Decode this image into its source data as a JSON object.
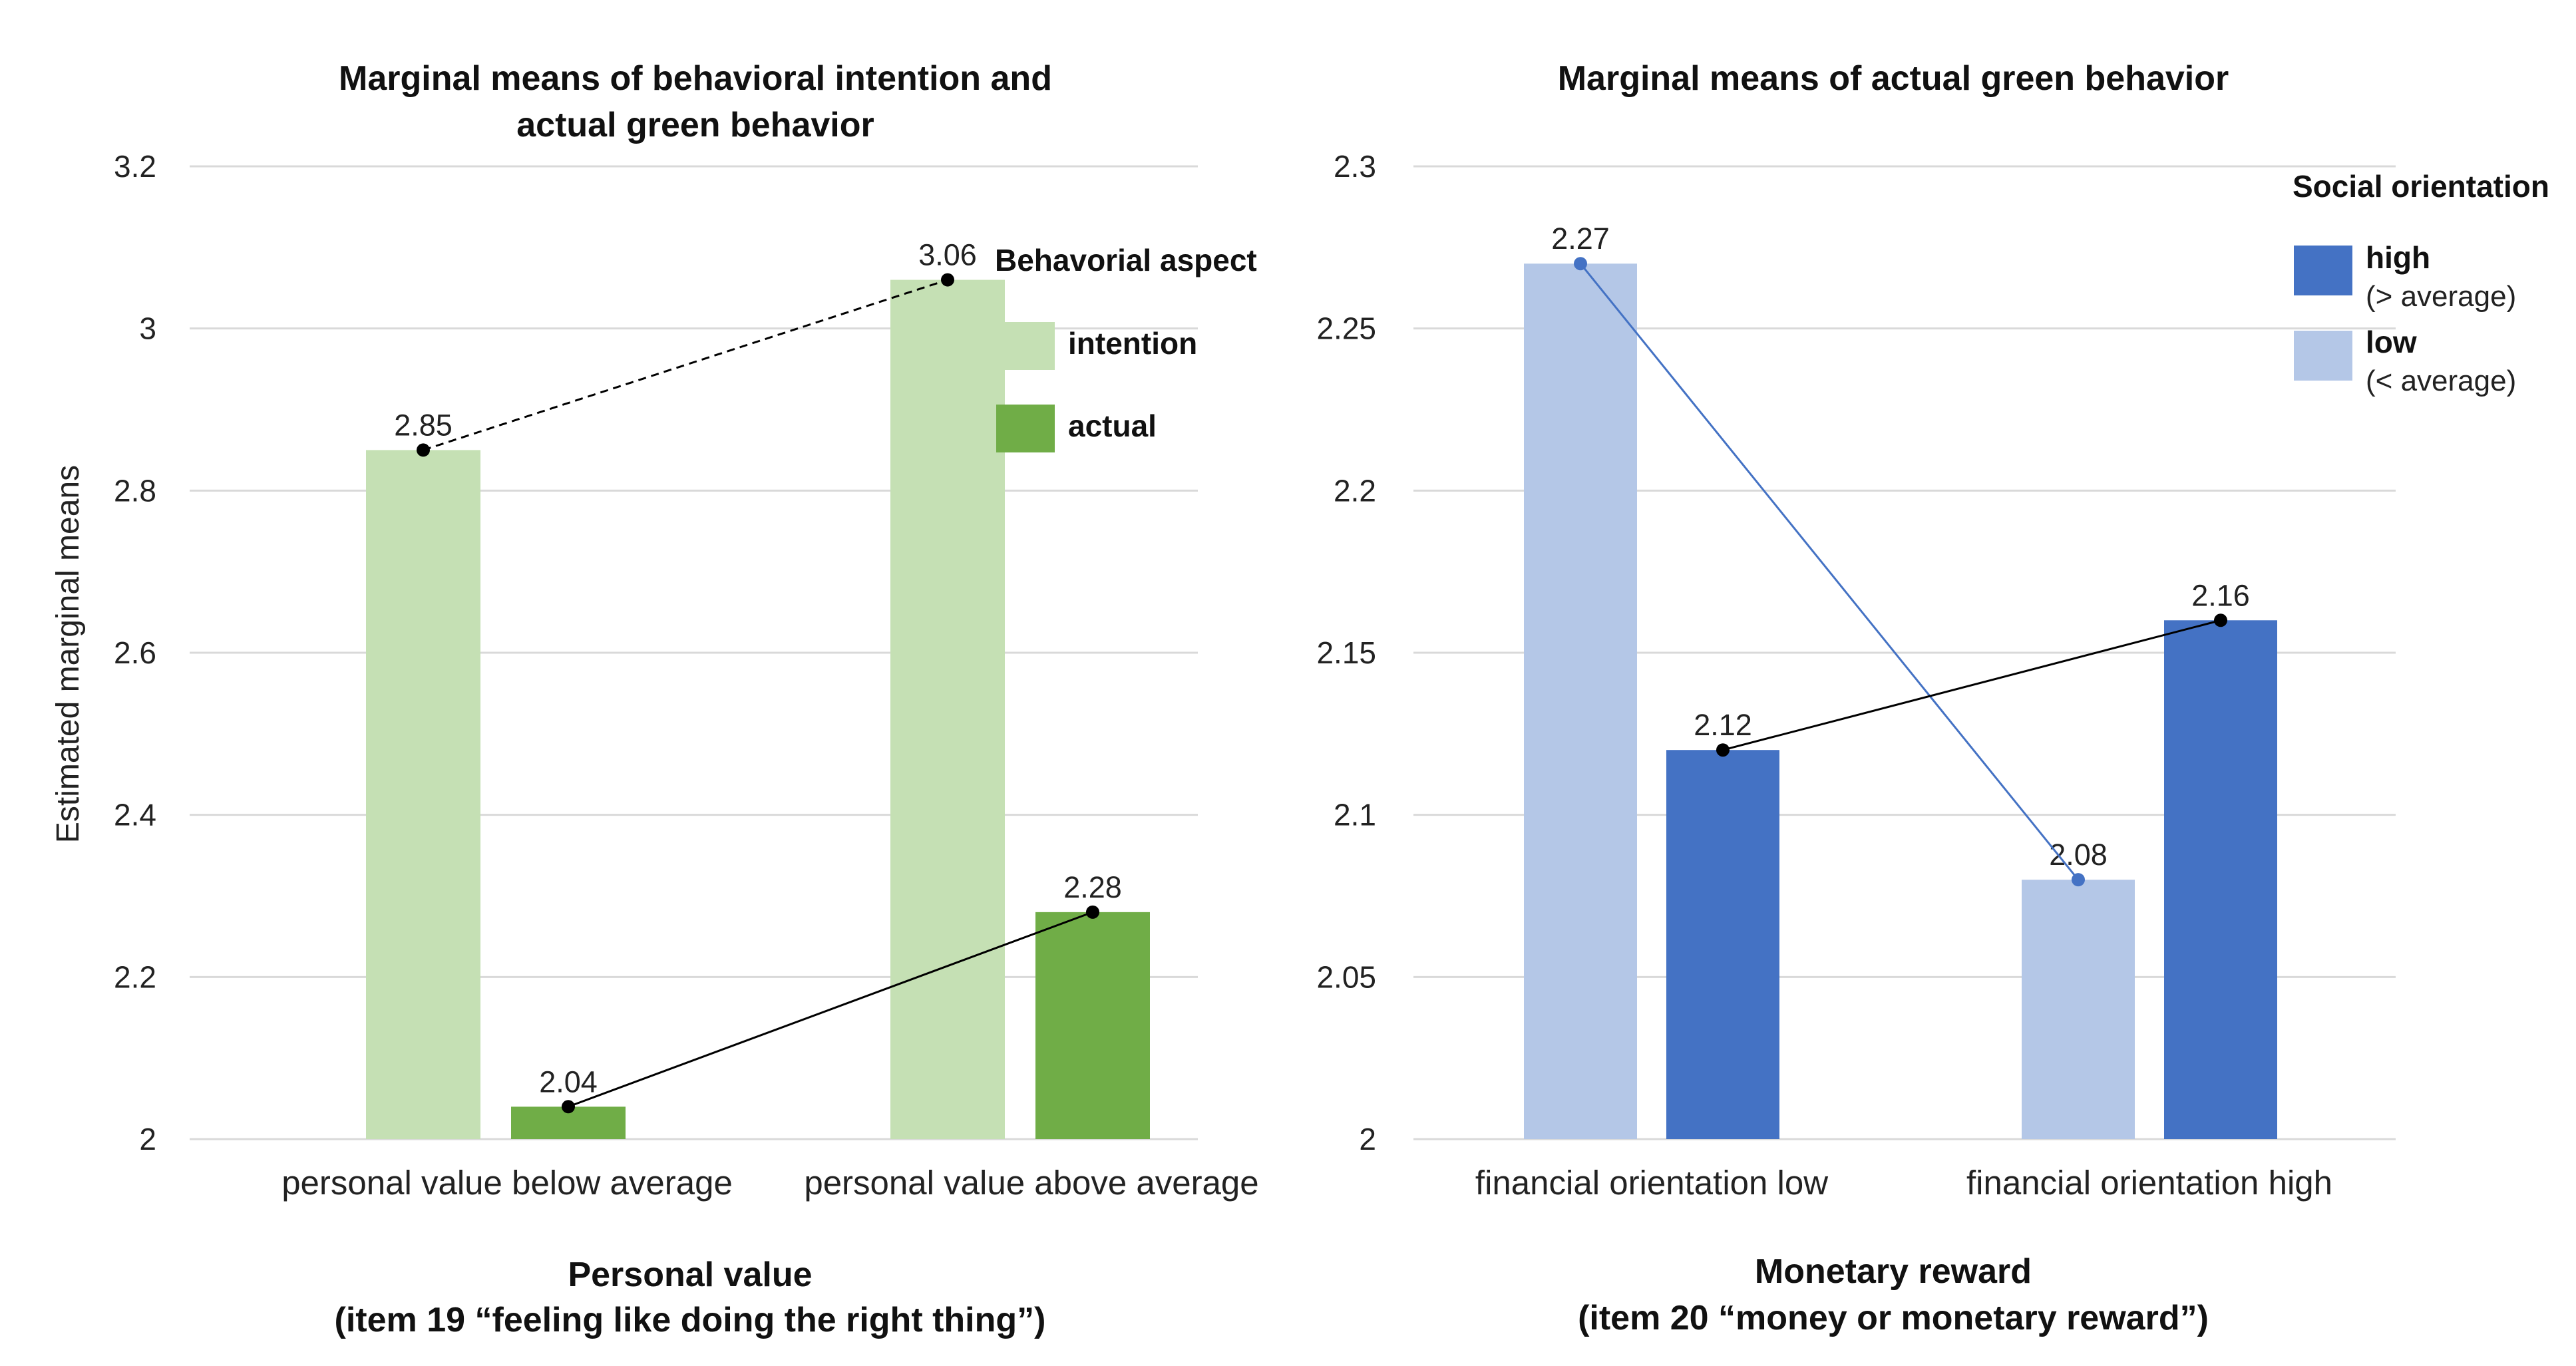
{
  "chart_data": [
    {
      "type": "bar",
      "title": [
        "Marginal means of behavioral intention and",
        "actual green behavior"
      ],
      "ylabel": "Estimated marginal means",
      "xlabel": [
        "Personal value",
        "(item 19 “feeling like doing the right thing”)"
      ],
      "ylim": [
        2,
        3.2
      ],
      "yticks": [
        2,
        2.2,
        2.4,
        2.6,
        2.8,
        3,
        3.2
      ],
      "ytick_labels": [
        "2",
        "2.2",
        "2.4",
        "2.6",
        "2.8",
        "3",
        "3.2"
      ],
      "categories": [
        "personal value below average",
        "personal value above average"
      ],
      "legend_title": "Behavorial aspect",
      "legend_position": "top-right",
      "series": [
        {
          "name": "intention",
          "values": [
            2.85,
            3.06
          ],
          "labels": [
            "2.85",
            "3.06"
          ],
          "color": "#c5e0b4",
          "line": "dashed",
          "line_color": "#000000"
        },
        {
          "name": "actual",
          "values": [
            2.04,
            2.28
          ],
          "labels": [
            "2.04",
            "2.28"
          ],
          "color": "#70ad47",
          "line": "solid",
          "line_color": "#000000"
        }
      ]
    },
    {
      "type": "bar",
      "title": [
        "Marginal means of actual green behavior"
      ],
      "ylabel": "",
      "xlabel": [
        "Monetary reward",
        "(item 20 “money or monetary reward”)"
      ],
      "ylim": [
        2,
        2.3
      ],
      "yticks": [
        2,
        2.05,
        2.1,
        2.15,
        2.2,
        2.25,
        2.3
      ],
      "ytick_labels": [
        "2",
        "2.05",
        "2.1",
        "2.15",
        "2.2",
        "2.25",
        "2.3"
      ],
      "categories": [
        "financial orientation low",
        "financial orientation high"
      ],
      "legend_title": "Social orientation",
      "legend_position": "top-right",
      "series": [
        {
          "name": "low",
          "sub": "(< average)",
          "values": [
            2.27,
            2.08
          ],
          "labels": [
            "2.27",
            "2.08"
          ],
          "color": "#b4c7e7",
          "line": "solid",
          "line_color": "#4472c4"
        },
        {
          "name": "high",
          "sub": "(> average)",
          "values": [
            2.12,
            2.16
          ],
          "labels": [
            "2.12",
            "2.16"
          ],
          "color": "#4472c4",
          "line": "solid",
          "line_color": "#000000"
        }
      ],
      "legend_order": [
        1,
        0
      ]
    }
  ]
}
